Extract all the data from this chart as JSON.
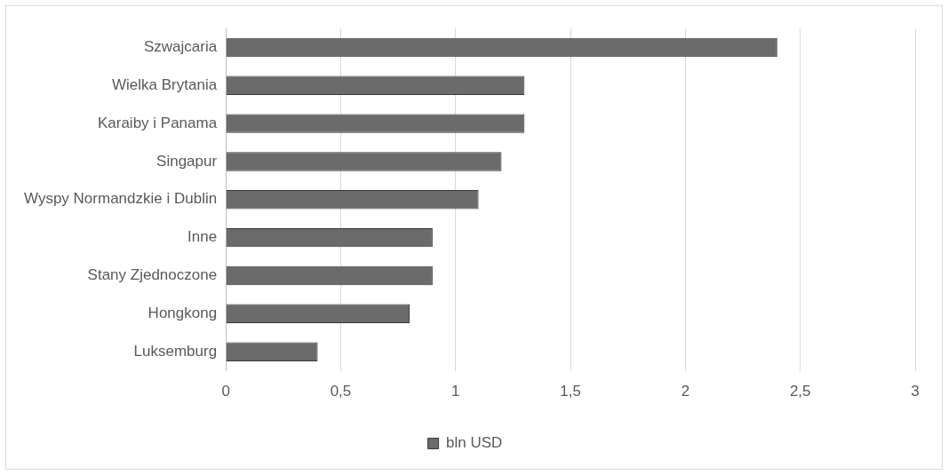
{
  "chart_data": {
    "type": "bar",
    "orientation": "horizontal",
    "categories": [
      "Szwajcaria",
      "Wielka Brytania",
      "Karaiby i Panama",
      "Singapur",
      "Wyspy Normandzkie i Dublin",
      "Inne",
      "Stany Zjednoczone",
      "Hongkong",
      "Luksemburg"
    ],
    "series": [
      {
        "name": "bln USD",
        "color": "#6b6b6b",
        "values": [
          2.4,
          1.3,
          1.3,
          1.2,
          1.1,
          0.9,
          0.9,
          0.8,
          0.4
        ]
      }
    ],
    "xlim": [
      0,
      3
    ],
    "xticks": [
      0,
      {
        "value": 0.5,
        "label": "0,5"
      },
      1,
      {
        "value": 1.5,
        "label": "1,5"
      },
      2,
      {
        "value": 2.5,
        "label": "2,5"
      },
      3
    ],
    "grid": "x",
    "legend": "bottom"
  }
}
